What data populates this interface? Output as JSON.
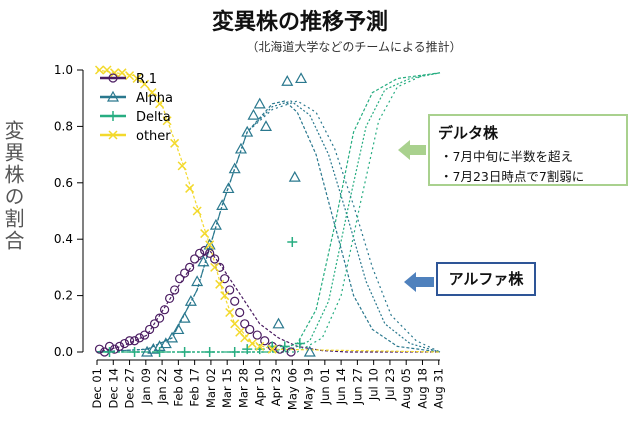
{
  "chart_data": {
    "type": "scatter",
    "title": "変異株の推移予測",
    "subtitle": "（北海道大学などのチームによる推計）",
    "ylabel": "変異株の割合",
    "ylim": [
      0,
      1
    ],
    "yticks": [
      "0.0",
      "0.2",
      "0.4",
      "0.6",
      "0.8",
      "1.0"
    ],
    "xticks": [
      "Dec 01",
      "Dec 14",
      "Dec 27",
      "Jan 09",
      "Jan 22",
      "Feb 04",
      "Feb 17",
      "Mar 02",
      "Mar 15",
      "Mar 28",
      "Apr 10",
      "Apr 23",
      "May 06",
      "May 19",
      "Jun 01",
      "Jun 14",
      "Jun 27",
      "Jul 10",
      "Jul 23",
      "Aug 05",
      "Aug 18",
      "Aug 31"
    ],
    "legend_position": "top-left",
    "series": [
      {
        "name": "R.1",
        "color": "#4b1d62",
        "marker": "circle",
        "points": [
          [
            2,
            0.01
          ],
          [
            6,
            0.0
          ],
          [
            10,
            0.02
          ],
          [
            14,
            0.01
          ],
          [
            18,
            0.02
          ],
          [
            22,
            0.03
          ],
          [
            26,
            0.04
          ],
          [
            30,
            0.04
          ],
          [
            34,
            0.05
          ],
          [
            38,
            0.06
          ],
          [
            42,
            0.08
          ],
          [
            46,
            0.1
          ],
          [
            50,
            0.12
          ],
          [
            54,
            0.15
          ],
          [
            58,
            0.19
          ],
          [
            62,
            0.22
          ],
          [
            66,
            0.26
          ],
          [
            70,
            0.28
          ],
          [
            74,
            0.3
          ],
          [
            78,
            0.33
          ],
          [
            82,
            0.35
          ],
          [
            86,
            0.36
          ],
          [
            90,
            0.35
          ],
          [
            94,
            0.33
          ],
          [
            98,
            0.3
          ],
          [
            102,
            0.26
          ],
          [
            106,
            0.22
          ],
          [
            110,
            0.18
          ],
          [
            114,
            0.14
          ],
          [
            118,
            0.1
          ],
          [
            122,
            0.08
          ],
          [
            128,
            0.06
          ],
          [
            134,
            0.04
          ],
          [
            140,
            0.02
          ],
          [
            146,
            0.01
          ],
          [
            155,
            0.0
          ]
        ],
        "fit": [
          [
            0,
            0.0
          ],
          [
            20,
            0.02
          ],
          [
            40,
            0.06
          ],
          [
            60,
            0.2
          ],
          [
            75,
            0.3
          ],
          [
            90,
            0.36
          ],
          [
            100,
            0.3
          ],
          [
            115,
            0.2
          ],
          [
            130,
            0.1
          ],
          [
            145,
            0.05
          ],
          [
            160,
            0.02
          ],
          [
            180,
            0.005
          ],
          [
            200,
            0.0
          ],
          [
            274,
            0.0
          ]
        ]
      },
      {
        "name": "Alpha",
        "color": "#2a788e",
        "marker": "triangle",
        "points": [
          [
            40,
            0.0
          ],
          [
            45,
            0.01
          ],
          [
            50,
            0.02
          ],
          [
            55,
            0.03
          ],
          [
            60,
            0.05
          ],
          [
            65,
            0.08
          ],
          [
            70,
            0.12
          ],
          [
            75,
            0.18
          ],
          [
            80,
            0.25
          ],
          [
            85,
            0.32
          ],
          [
            90,
            0.38
          ],
          [
            95,
            0.45
          ],
          [
            100,
            0.52
          ],
          [
            105,
            0.58
          ],
          [
            110,
            0.65
          ],
          [
            115,
            0.72
          ],
          [
            120,
            0.78
          ],
          [
            125,
            0.84
          ],
          [
            130,
            0.88
          ],
          [
            135,
            0.8
          ],
          [
            145,
            0.1
          ],
          [
            152,
            0.96
          ],
          [
            158,
            0.62
          ],
          [
            163,
            0.97
          ],
          [
            170,
            0.0
          ]
        ],
        "fit": [
          [
            0,
            0.0
          ],
          [
            40,
            0.01
          ],
          [
            60,
            0.05
          ],
          [
            80,
            0.22
          ],
          [
            100,
            0.52
          ],
          [
            120,
            0.78
          ],
          [
            140,
            0.88
          ],
          [
            150,
            0.89
          ],
          [
            160,
            0.85
          ],
          [
            175,
            0.7
          ],
          [
            190,
            0.45
          ],
          [
            205,
            0.2
          ],
          [
            220,
            0.08
          ],
          [
            240,
            0.02
          ],
          [
            274,
            0.0
          ]
        ],
        "fit_alt": [
          [
            0,
            0.0
          ],
          [
            40,
            0.01
          ],
          [
            60,
            0.05
          ],
          [
            80,
            0.22
          ],
          [
            100,
            0.52
          ],
          [
            120,
            0.78
          ],
          [
            140,
            0.87
          ],
          [
            155,
            0.89
          ],
          [
            170,
            0.84
          ],
          [
            185,
            0.7
          ],
          [
            200,
            0.48
          ],
          [
            215,
            0.25
          ],
          [
            230,
            0.1
          ],
          [
            250,
            0.03
          ],
          [
            274,
            0.0
          ]
        ],
        "fit_alt2": [
          [
            0,
            0.0
          ],
          [
            40,
            0.01
          ],
          [
            60,
            0.05
          ],
          [
            80,
            0.22
          ],
          [
            100,
            0.52
          ],
          [
            120,
            0.78
          ],
          [
            140,
            0.86
          ],
          [
            160,
            0.89
          ],
          [
            175,
            0.85
          ],
          [
            190,
            0.72
          ],
          [
            205,
            0.52
          ],
          [
            220,
            0.3
          ],
          [
            235,
            0.13
          ],
          [
            255,
            0.04
          ],
          [
            274,
            0.0
          ]
        ]
      },
      {
        "name": "Delta",
        "color": "#27ad81",
        "marker": "plus",
        "points": [
          [
            10,
            0.0
          ],
          [
            30,
            0.0
          ],
          [
            50,
            0.0
          ],
          [
            70,
            0.0
          ],
          [
            90,
            0.0
          ],
          [
            110,
            0.0
          ],
          [
            120,
            0.01
          ],
          [
            130,
            0.01
          ],
          [
            140,
            0.02
          ],
          [
            150,
            0.02
          ],
          [
            156,
            0.39
          ],
          [
            162,
            0.03
          ]
        ],
        "fit": [
          [
            0,
            0.0
          ],
          [
            140,
            0.0
          ],
          [
            160,
            0.03
          ],
          [
            175,
            0.15
          ],
          [
            190,
            0.45
          ],
          [
            205,
            0.78
          ],
          [
            220,
            0.92
          ],
          [
            240,
            0.97
          ],
          [
            274,
            0.99
          ]
        ],
        "fit_alt": [
          [
            0,
            0.0
          ],
          [
            150,
            0.0
          ],
          [
            170,
            0.04
          ],
          [
            185,
            0.18
          ],
          [
            200,
            0.5
          ],
          [
            215,
            0.8
          ],
          [
            230,
            0.93
          ],
          [
            250,
            0.97
          ],
          [
            274,
            0.99
          ]
        ],
        "fit_alt2": [
          [
            0,
            0.0
          ],
          [
            160,
            0.0
          ],
          [
            180,
            0.05
          ],
          [
            195,
            0.2
          ],
          [
            210,
            0.52
          ],
          [
            225,
            0.82
          ],
          [
            240,
            0.94
          ],
          [
            260,
            0.98
          ],
          [
            274,
            0.99
          ]
        ]
      },
      {
        "name": "other",
        "color": "#f3d92c",
        "marker": "x",
        "points": [
          [
            2,
            1.0
          ],
          [
            8,
            1.0
          ],
          [
            14,
            0.99
          ],
          [
            20,
            0.99
          ],
          [
            26,
            0.98
          ],
          [
            32,
            0.97
          ],
          [
            38,
            0.95
          ],
          [
            44,
            0.92
          ],
          [
            50,
            0.88
          ],
          [
            56,
            0.82
          ],
          [
            62,
            0.74
          ],
          [
            68,
            0.66
          ],
          [
            74,
            0.58
          ],
          [
            80,
            0.5
          ],
          [
            86,
            0.42
          ],
          [
            90,
            0.38
          ],
          [
            94,
            0.3
          ],
          [
            98,
            0.24
          ],
          [
            102,
            0.2
          ],
          [
            106,
            0.14
          ],
          [
            110,
            0.1
          ],
          [
            114,
            0.07
          ],
          [
            118,
            0.05
          ],
          [
            124,
            0.03
          ],
          [
            130,
            0.02
          ],
          [
            140,
            0.01
          ]
        ],
        "fit": [
          [
            0,
            1.0
          ],
          [
            30,
            0.98
          ],
          [
            50,
            0.9
          ],
          [
            70,
            0.65
          ],
          [
            90,
            0.38
          ],
          [
            100,
            0.22
          ],
          [
            110,
            0.1
          ],
          [
            125,
            0.03
          ],
          [
            140,
            0.01
          ],
          [
            274,
            0.0
          ]
        ]
      }
    ]
  },
  "annotations": {
    "delta_box": {
      "heading": "デルタ株",
      "line1": "・7月中旬に半数を超え",
      "line2": "・7月23日時点で7割弱に"
    },
    "alpha_box": {
      "label": "アルファ株"
    }
  },
  "colors": {
    "green_arrow": "#a9d18e",
    "blue_arrow": "#4f81bd"
  }
}
